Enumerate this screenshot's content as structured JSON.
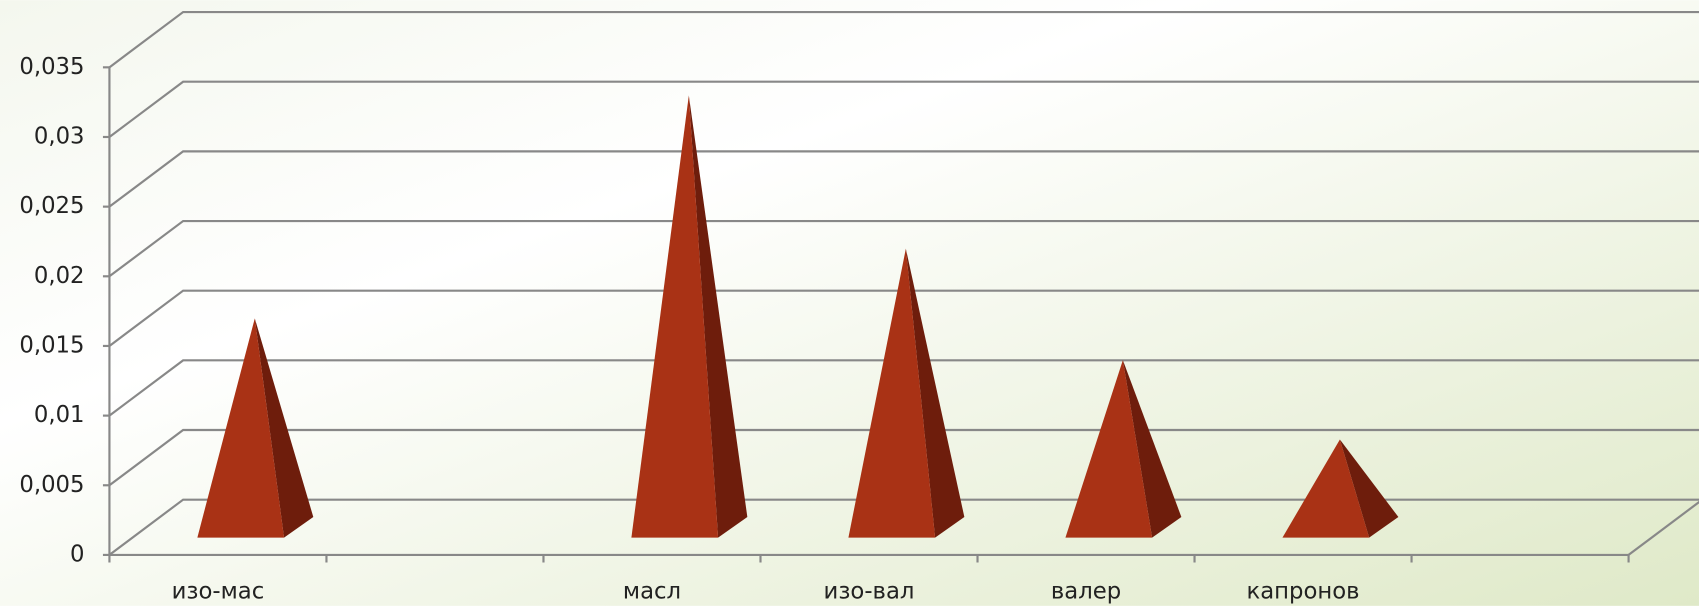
{
  "chart_data": {
    "type": "pyramid",
    "categories": [
      "изо-мас",
      null,
      "масл",
      "изо-вал",
      "валер",
      "капронов",
      null
    ],
    "values": [
      0.015,
      null,
      0.031,
      0.02,
      0.012,
      0.0063,
      null
    ],
    "color": "#a93215",
    "ylim": [
      0,
      0.035
    ],
    "yticks": [
      0,
      {
        "value": 0.005,
        "label": "0,005"
      },
      {
        "value": 0.01,
        "label": "0,01"
      },
      {
        "value": 0.015,
        "label": "0,015"
      },
      {
        "value": 0.02,
        "label": "0,02"
      },
      {
        "value": 0.025,
        "label": "0,025"
      },
      {
        "value": 0.03,
        "label": "0,03"
      },
      {
        "value": 0.035,
        "label": "0,035"
      }
    ],
    "grid": true
  }
}
